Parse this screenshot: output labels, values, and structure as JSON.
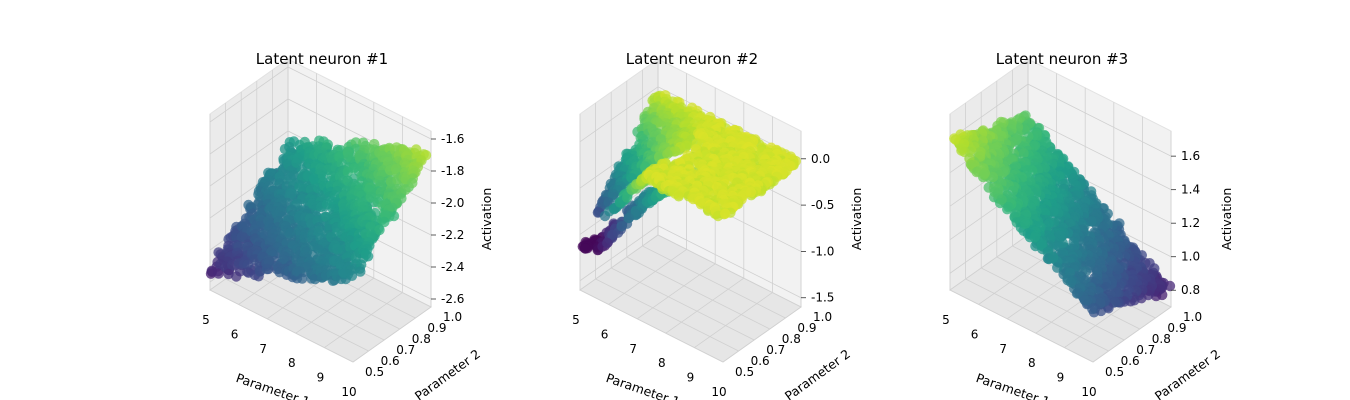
{
  "chart_data": [
    {
      "type": "scatter",
      "title": "Latent neuron #1",
      "xlabel": "Parameter 1",
      "ylabel": "Parameter 2",
      "zlabel": "Activation",
      "x_ticks": [
        "5",
        "6",
        "7",
        "8",
        "9",
        "10"
      ],
      "y_ticks": [
        "0.5",
        "0.6",
        "0.7",
        "0.8",
        "0.9",
        "1.0"
      ],
      "z_ticks": [
        "-2.6",
        "-2.4",
        "-2.2",
        "-2.0",
        "-1.8",
        "-1.6"
      ],
      "xlim": [
        5,
        10
      ],
      "ylim": [
        0.5,
        1.0
      ],
      "zlim": [
        -2.65,
        -1.55
      ],
      "grid": true,
      "colormap": "viridis",
      "surface": {
        "z_min": -2.65,
        "z_max": -1.55,
        "a1": 0.36,
        "a2": 0.42
      }
    },
    {
      "type": "scatter",
      "title": "Latent neuron #2",
      "xlabel": "Parameter 1",
      "ylabel": "Parameter 2",
      "zlabel": "Activation",
      "x_ticks": [
        "5",
        "6",
        "7",
        "8",
        "9",
        "10"
      ],
      "y_ticks": [
        "0.5",
        "0.6",
        "0.7",
        "0.8",
        "0.9",
        "1.0"
      ],
      "z_ticks": [
        "-1.5",
        "-1.0",
        "-0.5",
        "0.0"
      ],
      "xlim": [
        5,
        10
      ],
      "ylim": [
        0.5,
        1.0
      ],
      "zlim": [
        -1.6,
        0.3
      ],
      "grid": true,
      "colormap": "viridis",
      "surface": {
        "z_min": -1.15,
        "z_max": 0.05,
        "fold": true
      }
    },
    {
      "type": "scatter",
      "title": "Latent neuron #3",
      "xlabel": "Parameter 1",
      "ylabel": "Parameter 2",
      "zlabel": "Activation",
      "x_ticks": [
        "5",
        "6",
        "7",
        "8",
        "9",
        "10"
      ],
      "y_ticks": [
        "0.5",
        "0.6",
        "0.7",
        "0.8",
        "0.9",
        "1.0"
      ],
      "z_ticks": [
        "0.8",
        "1.0",
        "1.2",
        "1.4",
        "1.6"
      ],
      "xlim": [
        5,
        10
      ],
      "ylim": [
        0.5,
        1.0
      ],
      "zlim": [
        0.7,
        1.75
      ],
      "grid": true,
      "colormap": "viridis",
      "surface": {
        "z_min": 0.72,
        "z_max": 1.68,
        "a1": -0.62,
        "a2": -0.2
      }
    }
  ]
}
